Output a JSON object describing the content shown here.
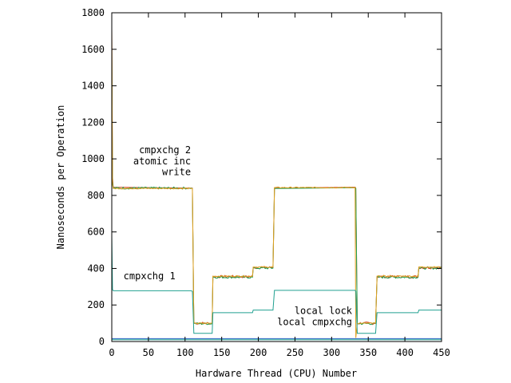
{
  "chart_data": {
    "type": "line",
    "xlabel": "Hardware Thread (CPU) Number",
    "ylabel": "Nanoseconds per Operation",
    "xlim": [
      0,
      450
    ],
    "ylim": [
      0,
      1800
    ],
    "x_ticks": [
      0,
      50,
      100,
      150,
      200,
      250,
      300,
      350,
      400,
      450
    ],
    "y_ticks": [
      0,
      200,
      400,
      600,
      800,
      1000,
      1200,
      1400,
      1600,
      1800
    ],
    "grid": false,
    "annotations": [
      {
        "text": "cmpxchg 2",
        "anchor": "end",
        "x": 108,
        "y": 1030
      },
      {
        "text": "atomic inc",
        "anchor": "end",
        "x": 108,
        "y": 970
      },
      {
        "text": "write",
        "anchor": "end",
        "x": 108,
        "y": 910
      },
      {
        "text": "cmpxchg 1",
        "anchor": "start",
        "x": 16,
        "y": 340
      },
      {
        "text": "local lock",
        "anchor": "end",
        "x": 328,
        "y": 150
      },
      {
        "text": "local cmpxchg",
        "anchor": "end",
        "x": 328,
        "y": 90
      }
    ],
    "series": [
      {
        "color": "#d04020",
        "noise": 7,
        "points": [
          [
            0,
            1720
          ],
          [
            1,
            900
          ],
          [
            2,
            845
          ],
          [
            108,
            840
          ],
          [
            110,
            840
          ],
          [
            112,
            100
          ],
          [
            137,
            100
          ],
          [
            138,
            355
          ],
          [
            192,
            355
          ],
          [
            193,
            405
          ],
          [
            220,
            405
          ],
          [
            222,
            840
          ],
          [
            332,
            845
          ],
          [
            333,
            840
          ],
          [
            335,
            100
          ],
          [
            360,
            100
          ],
          [
            362,
            355
          ],
          [
            418,
            355
          ],
          [
            419,
            405
          ],
          [
            450,
            405
          ]
        ]
      },
      {
        "color": "#20a050",
        "noise": 6,
        "points": [
          [
            0,
            1600
          ],
          [
            1,
            880
          ],
          [
            2,
            840
          ],
          [
            108,
            840
          ],
          [
            110,
            838
          ],
          [
            112,
            98
          ],
          [
            137,
            98
          ],
          [
            138,
            352
          ],
          [
            192,
            352
          ],
          [
            193,
            402
          ],
          [
            220,
            402
          ],
          [
            222,
            838
          ],
          [
            332,
            842
          ],
          [
            333,
            838
          ],
          [
            335,
            98
          ],
          [
            360,
            98
          ],
          [
            362,
            352
          ],
          [
            418,
            352
          ],
          [
            419,
            402
          ],
          [
            450,
            402
          ]
        ]
      },
      {
        "color": "#e0a020",
        "noise": 3,
        "points": [
          [
            0,
            1710
          ],
          [
            1,
            860
          ],
          [
            2,
            838
          ],
          [
            108,
            838
          ],
          [
            110,
            838
          ],
          [
            112,
            100
          ],
          [
            137,
            100
          ],
          [
            138,
            358
          ],
          [
            192,
            358
          ],
          [
            193,
            408
          ],
          [
            220,
            408
          ],
          [
            222,
            843
          ],
          [
            332,
            843
          ],
          [
            333,
            20
          ],
          [
            335,
            100
          ],
          [
            360,
            100
          ],
          [
            362,
            358
          ],
          [
            418,
            358
          ],
          [
            419,
            408
          ],
          [
            450,
            408
          ]
        ]
      },
      {
        "color": "#20a090",
        "noise": 0,
        "points": [
          [
            0,
            580
          ],
          [
            1,
            285
          ],
          [
            2,
            278
          ],
          [
            108,
            278
          ],
          [
            110,
            275
          ],
          [
            112,
            45
          ],
          [
            137,
            45
          ],
          [
            138,
            158
          ],
          [
            192,
            158
          ],
          [
            193,
            172
          ],
          [
            220,
            172
          ],
          [
            222,
            280
          ],
          [
            332,
            280
          ],
          [
            333,
            275
          ],
          [
            335,
            45
          ],
          [
            360,
            45
          ],
          [
            362,
            158
          ],
          [
            418,
            158
          ],
          [
            419,
            172
          ],
          [
            450,
            172
          ]
        ]
      },
      {
        "color": "#20a090",
        "noise": 0,
        "points": [
          [
            0,
            10
          ],
          [
            450,
            10
          ]
        ]
      },
      {
        "color": "#2060c0",
        "noise": 0,
        "points": [
          [
            0,
            16
          ],
          [
            450,
            16
          ]
        ]
      }
    ]
  }
}
